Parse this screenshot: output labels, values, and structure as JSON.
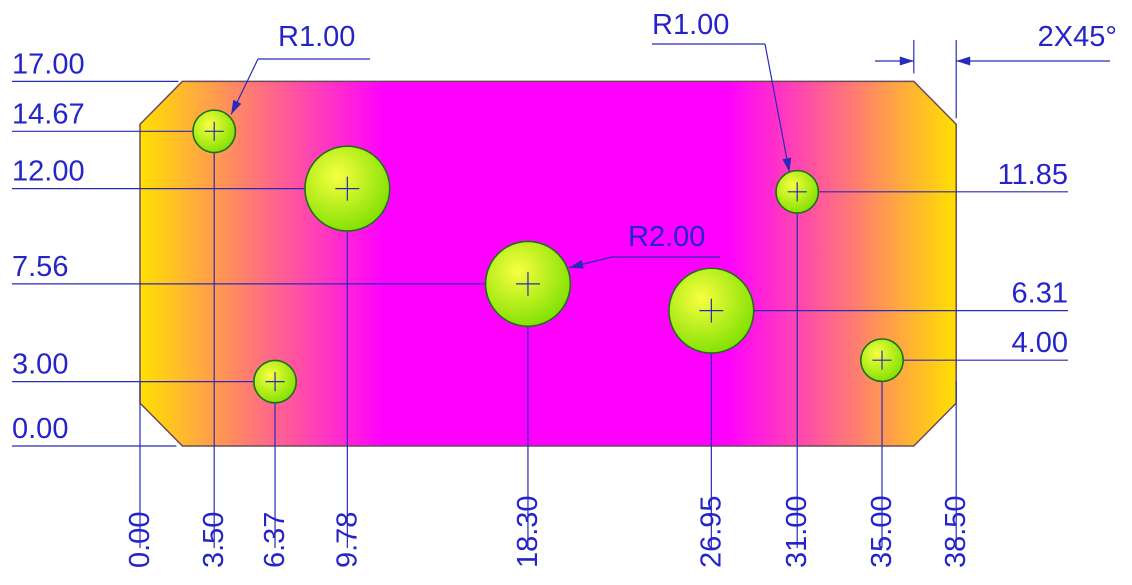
{
  "drawing": {
    "chamfer_note": "2X45°",
    "plate": {
      "width": 38.5,
      "height": 17.0,
      "chamfer": 2.0
    },
    "colors": {
      "plate_edge": "#ffe000",
      "plate_center": "#ff00ff",
      "hole_highlight": "#f8ff40",
      "hole_base": "#7ee000",
      "dimension": "#2424c8"
    },
    "holes": [
      {
        "x": 3.5,
        "y": 14.67,
        "r": 1.0
      },
      {
        "x": 6.37,
        "y": 3.0,
        "r": 1.0
      },
      {
        "x": 9.78,
        "y": 12.0,
        "r": 2.0
      },
      {
        "x": 18.3,
        "y": 7.56,
        "r": 2.0
      },
      {
        "x": 26.95,
        "y": 6.31,
        "r": 2.0
      },
      {
        "x": 31.0,
        "y": 11.85,
        "r": 1.0
      },
      {
        "x": 35.0,
        "y": 4.0,
        "r": 1.0
      }
    ],
    "radius_callouts": [
      {
        "text": "R1.00",
        "hole": 0
      },
      {
        "text": "R1.00",
        "hole": 5
      },
      {
        "text": "R2.00",
        "hole": 3
      }
    ],
    "left_dims": [
      {
        "text": "17.00",
        "value": 17.0
      },
      {
        "text": "14.67",
        "value": 14.67
      },
      {
        "text": "12.00",
        "value": 12.0
      },
      {
        "text": "7.56",
        "value": 7.56
      },
      {
        "text": "3.00",
        "value": 3.0
      },
      {
        "text": "0.00",
        "value": 0.0
      }
    ],
    "right_dims": [
      {
        "text": "11.85",
        "value": 11.85
      },
      {
        "text": "6.31",
        "value": 6.31
      },
      {
        "text": "4.00",
        "value": 4.0
      }
    ],
    "bottom_dims": [
      {
        "text": "0.00",
        "value": 0.0
      },
      {
        "text": "3.50",
        "value": 3.5
      },
      {
        "text": "6.37",
        "value": 6.37
      },
      {
        "text": "9.78",
        "value": 9.78
      },
      {
        "text": "18.30",
        "value": 18.3
      },
      {
        "text": "26.95",
        "value": 26.95
      },
      {
        "text": "31.00",
        "value": 31.0
      },
      {
        "text": "35.00",
        "value": 35.0
      },
      {
        "text": "38.50",
        "value": 38.5
      }
    ]
  }
}
